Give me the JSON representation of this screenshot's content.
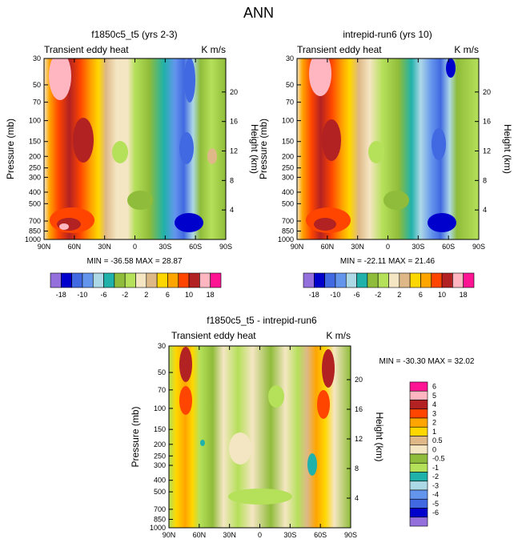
{
  "page_title": "ANN",
  "chart_data": [
    {
      "type": "heatmap",
      "title": "f1850c5_t5 (yrs 2-3)",
      "left_label": "Transient eddy heat",
      "units": "K m/s",
      "ylabel": "Pressure (mb)",
      "ylabel_right": "Height (km)",
      "x_ticks": [
        "90N",
        "60N",
        "30N",
        "0",
        "30S",
        "60S",
        "90S"
      ],
      "y_ticks": [
        "30",
        "50",
        "70",
        "100",
        "150",
        "200",
        "250",
        "300",
        "400",
        "500",
        "700",
        "850",
        "1000"
      ],
      "height_ticks": [
        "20",
        "16",
        "12",
        "8",
        "4"
      ],
      "min_max": "MIN = -36.58   MAX =  28.87",
      "min": -36.58,
      "max": 28.87
    },
    {
      "type": "heatmap",
      "title": "intrepid-run6 (yrs 10)",
      "left_label": "Transient eddy heat",
      "units": "K m/s",
      "ylabel": "Pressure (mb)",
      "ylabel_right": "Height (km)",
      "x_ticks": [
        "90N",
        "60N",
        "30N",
        "0",
        "30S",
        "60S",
        "90S"
      ],
      "y_ticks": [
        "30",
        "50",
        "70",
        "100",
        "150",
        "200",
        "250",
        "300",
        "400",
        "500",
        "700",
        "850",
        "1000"
      ],
      "height_ticks": [
        "20",
        "16",
        "12",
        "8",
        "4"
      ],
      "min_max": "MIN = -22.11   MAX =  21.46",
      "min": -22.11,
      "max": 21.46
    },
    {
      "type": "heatmap",
      "title": "f1850c5_t5 - intrepid-run6",
      "left_label": "Transient eddy heat",
      "units": "K m/s",
      "ylabel": "Pressure (mb)",
      "ylabel_right": "Height (km)",
      "x_ticks": [
        "90N",
        "60N",
        "30N",
        "0",
        "30S",
        "60S",
        "90S"
      ],
      "y_ticks": [
        "30",
        "50",
        "70",
        "100",
        "150",
        "200",
        "250",
        "300",
        "400",
        "500",
        "700",
        "850",
        "1000"
      ],
      "height_ticks": [
        "20",
        "16",
        "12",
        "8",
        "4"
      ],
      "min_max": "MIN = -30.30   MAX =  32.02",
      "min": -30.3,
      "max": 32.02
    }
  ],
  "colorbar_top": {
    "labels": [
      "-18",
      "-10",
      "-6",
      "-2",
      "2",
      "6",
      "10",
      "18"
    ],
    "colors": [
      "#9370db",
      "#0000cd",
      "#4169e1",
      "#6495ed",
      "#add8e6",
      "#20b2aa",
      "#8fbc3a",
      "#b5e05a",
      "#f5e6c3",
      "#deb887",
      "#ffd700",
      "#ffa500",
      "#ff4500",
      "#b22222",
      "#ffb6c1",
      "#ff1493"
    ]
  },
  "colorbar_diff": {
    "labels": [
      "6",
      "5",
      "4",
      "3",
      "2",
      "1",
      "0.5",
      "0",
      "-0.5",
      "-1",
      "-2",
      "-3",
      "-4",
      "-5",
      "-6"
    ],
    "colors": [
      "#ff1493",
      "#ffb6c1",
      "#b22222",
      "#ff4500",
      "#ffa500",
      "#ffd700",
      "#deb887",
      "#f5e6c3",
      "#8fbc3a",
      "#b5e05a",
      "#20b2aa",
      "#add8e6",
      "#6495ed",
      "#4169e1",
      "#0000cd",
      "#9370db"
    ]
  }
}
